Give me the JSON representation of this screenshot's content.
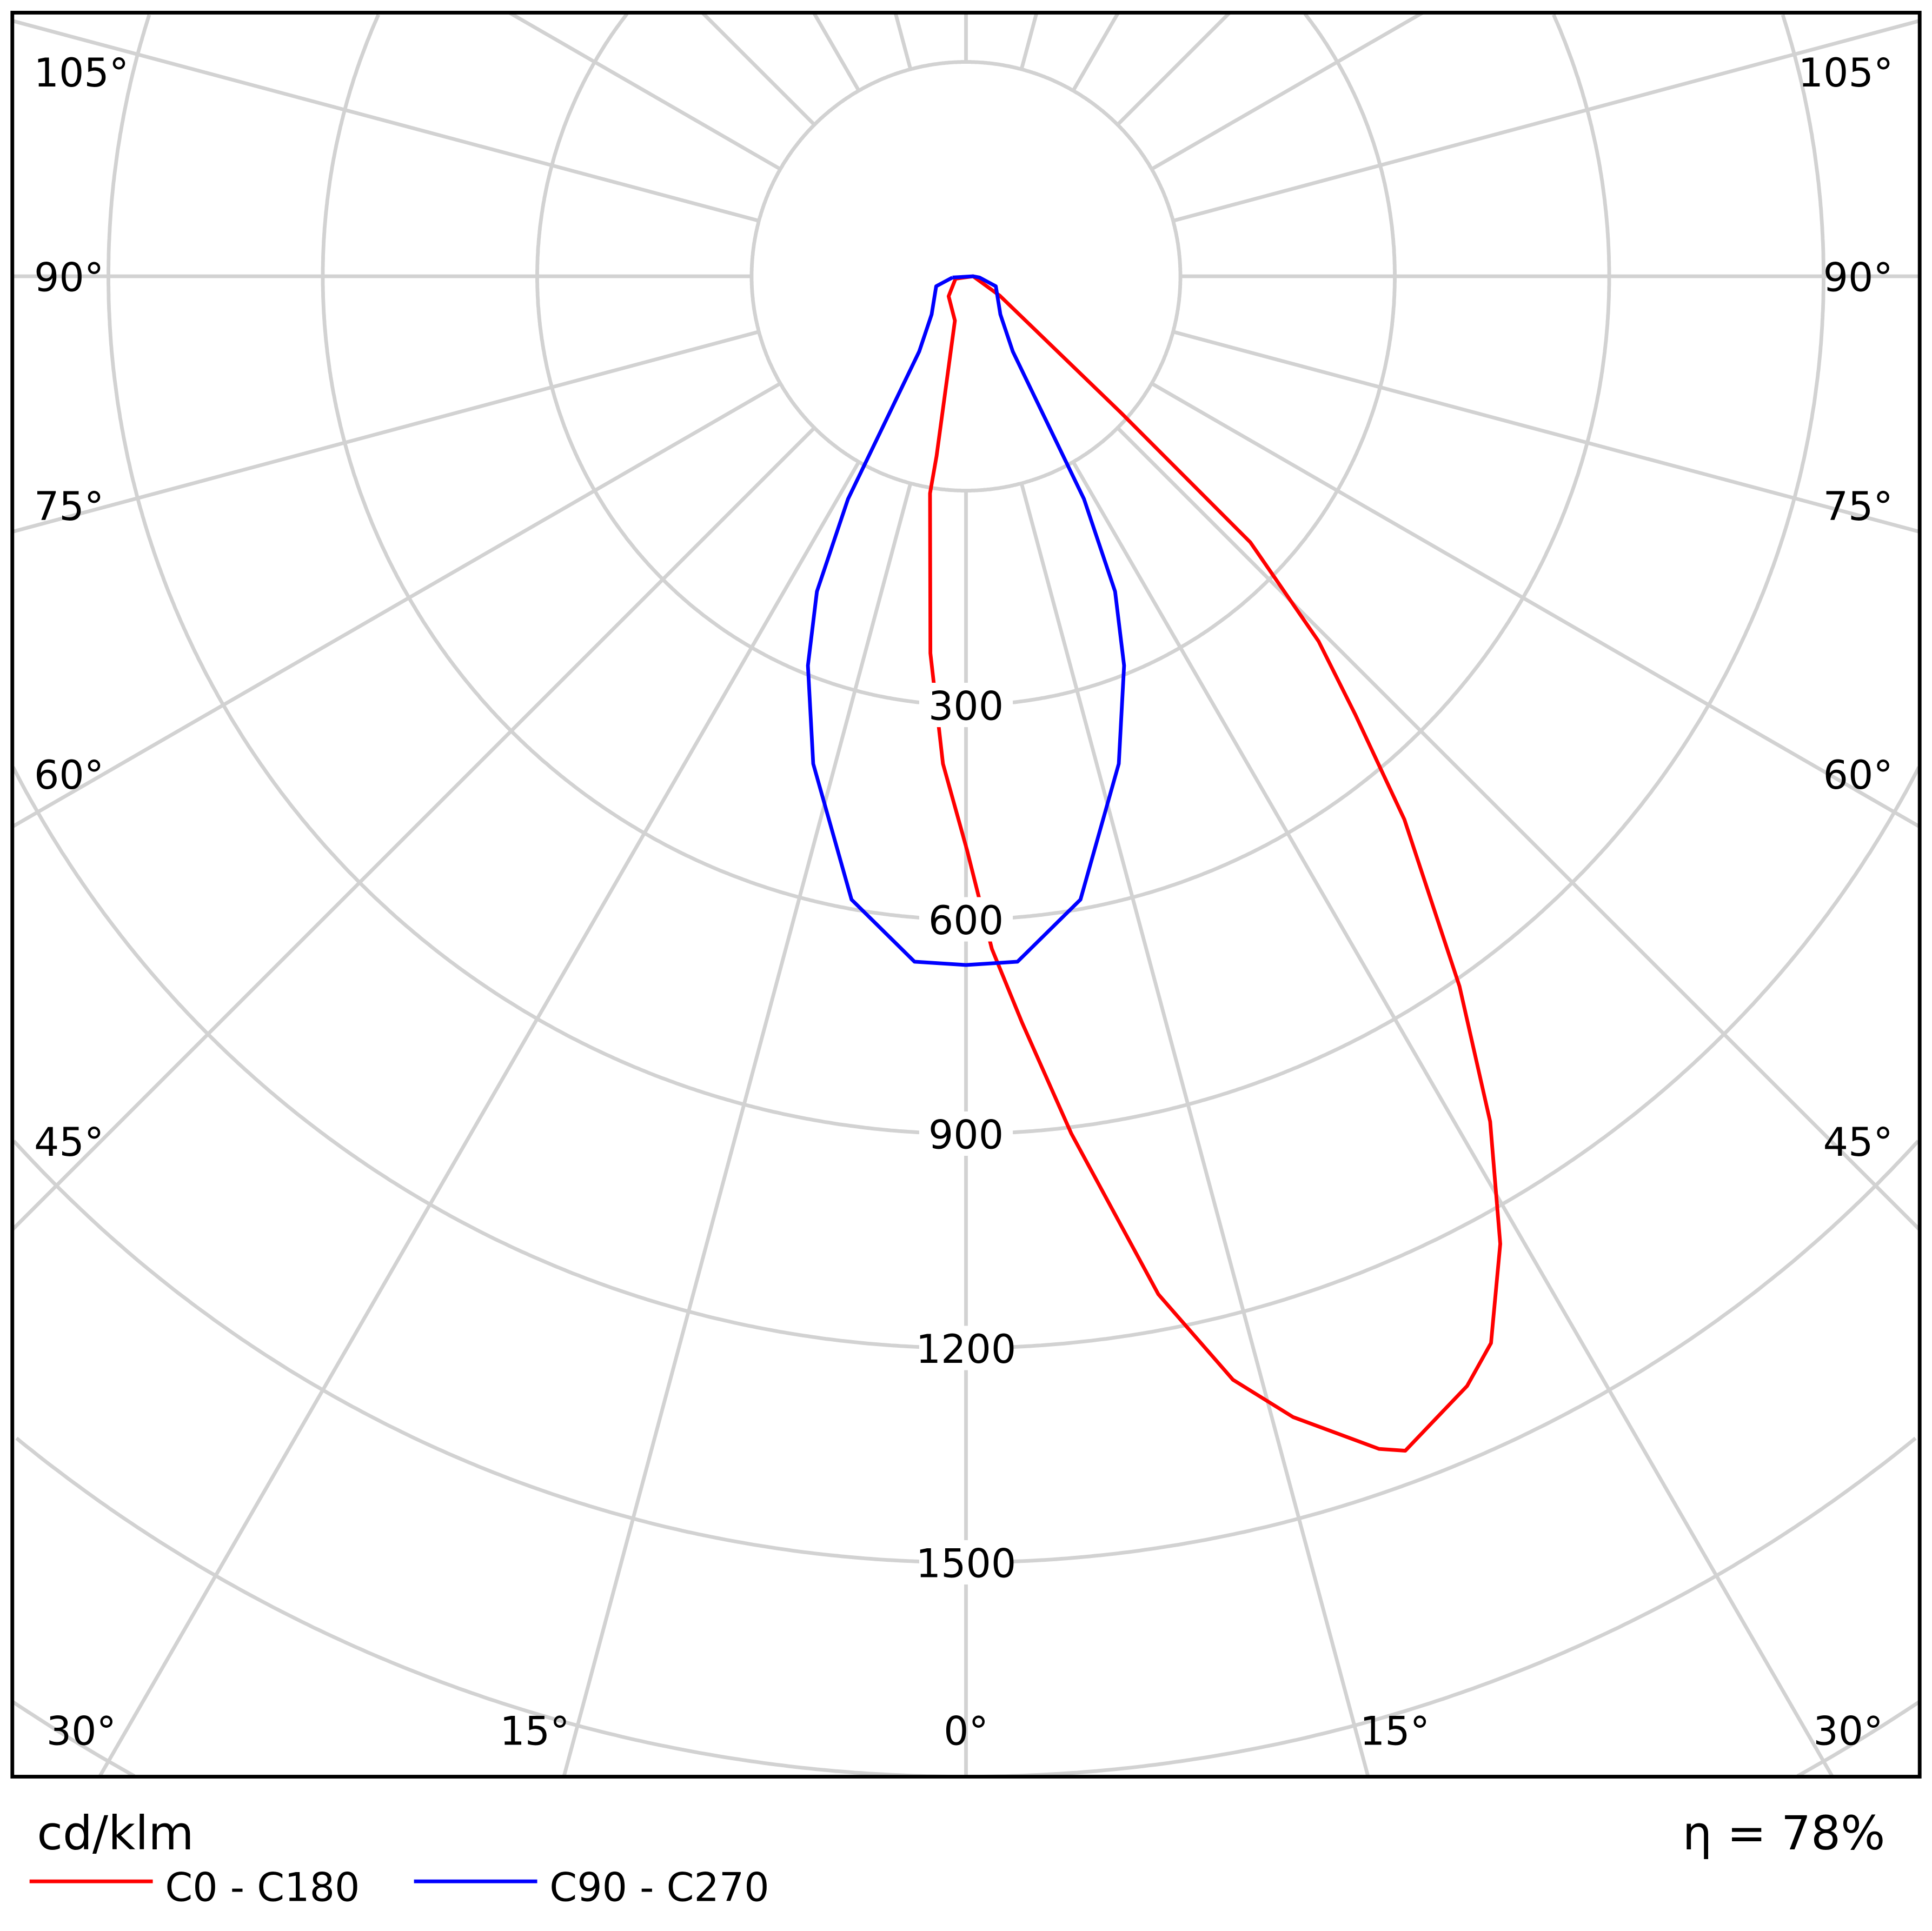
{
  "chart_data": {
    "type": "polar",
    "unit_label": "cd/klm",
    "efficiency_label": "η = 78%",
    "radial_tick_labels": [
      "300",
      "600",
      "900",
      "1200",
      "1500"
    ],
    "radial_ticks": [
      300,
      600,
      900,
      1200,
      1500
    ],
    "angle_tick_labels": {
      "left": [
        "105°",
        "90°",
        "75°",
        "60°",
        "45°"
      ],
      "right": [
        "105°",
        "90°",
        "75°",
        "60°",
        "45°"
      ],
      "bottom": [
        "30°",
        "15°",
        "0°",
        "15°",
        "30°"
      ]
    },
    "angle_step_deg": 15,
    "grid": true,
    "legend_position": "bottom-left",
    "series": [
      {
        "name": "C0 - C180",
        "color": "#ff0000",
        "points_gamma_intensity": [
          [
            -77,
            15
          ],
          [
            -41,
            37
          ],
          [
            -14,
            64
          ],
          [
            -9.3,
            255
          ],
          [
            -9.4,
            308
          ],
          [
            -5.4,
            530
          ],
          [
            -2.7,
            683
          ],
          [
            0.1,
            803
          ],
          [
            2.2,
            942
          ],
          [
            4.3,
            1048
          ],
          [
            7.0,
            1209
          ],
          [
            10.7,
            1450
          ],
          [
            13.6,
            1589
          ],
          [
            16.0,
            1661
          ],
          [
            19.4,
            1740
          ],
          [
            20.5,
            1755
          ],
          [
            24.3,
            1704
          ],
          [
            26.2,
            1664
          ],
          [
            28.9,
            1547
          ],
          [
            31.8,
            1392
          ],
          [
            34.8,
            1210
          ],
          [
            38.9,
            977
          ],
          [
            41.6,
            821
          ],
          [
            44.0,
            710
          ],
          [
            46.9,
            545
          ],
          [
            48.6,
            290
          ],
          [
            60,
            55
          ],
          [
            90,
            10
          ],
          [
            -77,
            15
          ]
        ]
      },
      {
        "name": "C90 - C270",
        "color": "#0000ff",
        "points_gamma_intensity": [
          [
            -85,
            19
          ],
          [
            -71.6,
            44
          ],
          [
            -42,
            72
          ],
          [
            -31.9,
            124
          ],
          [
            -27.9,
            353
          ],
          [
            -25.3,
            488
          ],
          [
            -22.1,
            588
          ],
          [
            -17.4,
            715
          ],
          [
            -10.4,
            887
          ],
          [
            -4.3,
            962
          ],
          [
            0,
            964
          ],
          [
            4.3,
            962
          ],
          [
            10.4,
            887
          ],
          [
            17.4,
            715
          ],
          [
            22.1,
            588
          ],
          [
            25.3,
            488
          ],
          [
            27.9,
            353
          ],
          [
            31.9,
            124
          ],
          [
            42,
            72
          ],
          [
            71.6,
            44
          ],
          [
            85,
            19
          ],
          [
            90,
            10
          ],
          [
            -85,
            19
          ]
        ]
      }
    ]
  }
}
